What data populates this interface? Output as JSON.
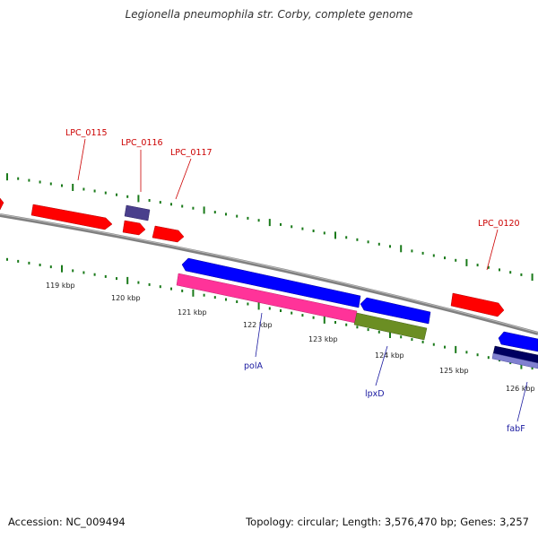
{
  "title": "Legionella pneumophila str. Corby, complete genome",
  "footer": {
    "accession": "Accession: NC_009494",
    "summary": "Topology: circular; Length: 3,576,470 bp; Genes: 3,257"
  },
  "colors": {
    "backbone": "#888888",
    "tick": "#1a7a1a",
    "forward_gene": "#ff0000",
    "reverse_gene": "#0000ff",
    "pink_feature": "#ff3399",
    "olive_feature": "#6b8e23",
    "purple_feature": "#4a3f8c",
    "navy_feature": "#000060",
    "lavender_feature": "#8080d0",
    "red_label": "#cc0000",
    "blue_label": "#1a1aa0"
  },
  "ticks": {
    "labels": [
      "119 kbp",
      "120 kbp",
      "121 kbp",
      "122 kbp",
      "123 kbp",
      "124 kbp",
      "125 kbp",
      "126 kbp"
    ]
  },
  "genes": {
    "top": [
      "LPC_0115",
      "LPC_0116",
      "LPC_0117",
      "LPC_0120"
    ],
    "bottom": [
      "polA",
      "lpxD",
      "fabF"
    ]
  }
}
